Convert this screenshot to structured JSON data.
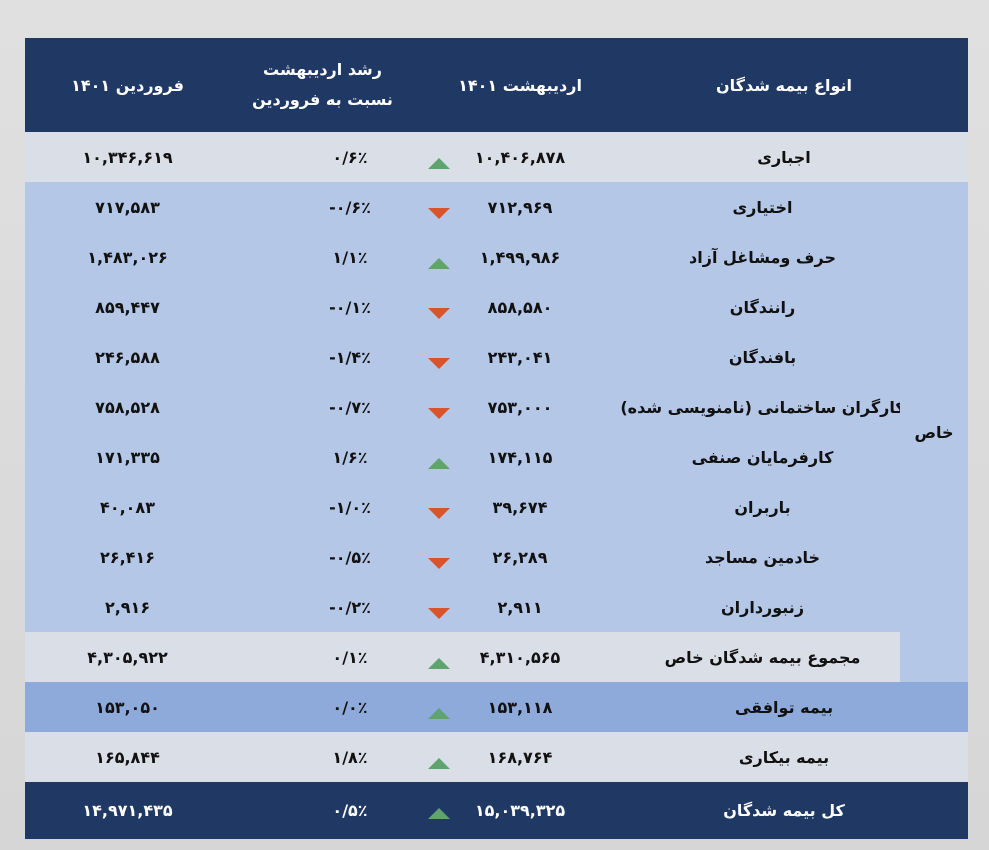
{
  "header": {
    "type_label": "انواع بیمه شدگان",
    "may_label": "اردیبهشت  ۱۴۰۱",
    "growth_label_line1": "رشد اردیبهشت",
    "growth_label_line2": "نسبت به فروردین",
    "apr_label": "فروردین ۱۴۰۱"
  },
  "khas_label": "خاص",
  "rows": [
    {
      "type": "اجباری",
      "may": "۱۰,۴۰۶,۸۷۸",
      "growth": "۰/۶٪",
      "apr": "۱۰,۳۴۶,۶۱۹",
      "trend": "up"
    },
    {
      "type": "اختیاری",
      "may": "۷۱۲,۹۶۹",
      "growth": "-۰/۶٪",
      "apr": "۷۱۷,۵۸۳",
      "trend": "down"
    },
    {
      "type": "حرف ومشاغل آزاد",
      "may": "۱,۴۹۹,۹۸۶",
      "growth": "۱/۱٪",
      "apr": "۱,۴۸۳,۰۲۶",
      "trend": "up"
    },
    {
      "type": "رانندگان",
      "may": "۸۵۸,۵۸۰",
      "growth": "-۰/۱٪",
      "apr": "۸۵۹,۴۴۷",
      "trend": "down"
    },
    {
      "type": "بافندگان",
      "may": "۲۴۳,۰۴۱",
      "growth": "-۱/۴٪",
      "apr": "۲۴۶,۵۸۸",
      "trend": "down"
    },
    {
      "type": "کارگران ساختمانی (نامنویسی شده)",
      "may": "۷۵۳,۰۰۰",
      "growth": "-۰/۷٪",
      "apr": "۷۵۸,۵۲۸",
      "trend": "down"
    },
    {
      "type": "کارفرمایان صنفی",
      "may": "۱۷۴,۱۱۵",
      "growth": "۱/۶٪",
      "apr": "۱۷۱,۳۳۵",
      "trend": "up"
    },
    {
      "type": "باربران",
      "may": "۳۹,۶۷۴",
      "growth": "-۱/۰٪",
      "apr": "۴۰,۰۸۳",
      "trend": "down"
    },
    {
      "type": "خادمین مساجد",
      "may": "۲۶,۲۸۹",
      "growth": "-۰/۵٪",
      "apr": "۲۶,۴۱۶",
      "trend": "down"
    },
    {
      "type": "زنبورداران",
      "may": "۲,۹۱۱",
      "growth": "-۰/۲٪",
      "apr": "۲,۹۱۶",
      "trend": "down"
    },
    {
      "type": "مجموع بیمه شدگان خاص",
      "may": "۴,۳۱۰,۵۶۵",
      "growth": "۰/۱٪",
      "apr": "۴,۳۰۵,۹۲۲",
      "trend": "up"
    },
    {
      "type": "بیمه توافقی",
      "may": "۱۵۳,۱۱۸",
      "growth": "۰/۰٪",
      "apr": "۱۵۳,۰۵۰",
      "trend": "up"
    },
    {
      "type": "بیمه بیکاری",
      "may": "۱۶۸,۷۶۴",
      "growth": "۱/۸٪",
      "apr": "۱۶۵,۸۴۴",
      "trend": "up"
    },
    {
      "type": "کل بیمه شدگان",
      "may": "۱۵,۰۳۹,۳۲۵",
      "growth": "۰/۵٪",
      "apr": "۱۴,۹۷۱,۴۳۵",
      "trend": "up"
    }
  ],
  "colors": {
    "header_bg": "#1f3864",
    "grey_row": "#d9dee7",
    "light_blue_row": "#b4c7e7",
    "mid_blue_row": "#8eaadb",
    "arrow_up": "#5fa36e",
    "arrow_down": "#d9532b"
  }
}
